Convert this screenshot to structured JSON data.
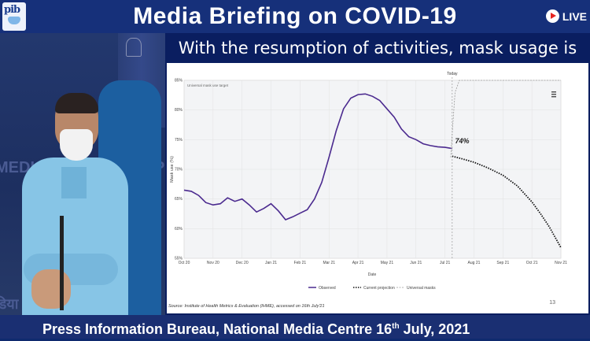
{
  "header": {
    "title": "Media Briefing on COVID-19",
    "live_label": "LIVE",
    "logo_text": "pib"
  },
  "speaker": {
    "background_text_left": "MEDIA",
    "background_text_right": "P",
    "background_text_bottom": "डिया"
  },
  "slide": {
    "title": "With the resumption of activities, mask usage is declining",
    "source": "Source: Institute of Health Metrics & Evaluation (IHME), accessed on 16th July'21",
    "page_number": "13"
  },
  "footer": {
    "text": "Press Information Bureau, National Media Centre  16",
    "sup": "th",
    "text_end": " July, 2021"
  },
  "chart_data": {
    "type": "line",
    "title": "",
    "ylabel": "Mask use (%)",
    "xlabel": "Date",
    "ylim": [
      55,
      85
    ],
    "yticks": [
      "55%",
      "60%",
      "65%",
      "70%",
      "75%",
      "80%",
      "85%"
    ],
    "xticks": [
      "Oct 20",
      "Nov 20",
      "Dec 20",
      "Jan 21",
      "Feb 21",
      "Mar 21",
      "Apr 21",
      "May 21",
      "Jun 21",
      "Jul 21",
      "Aug 21",
      "Sep 21",
      "Oct 21",
      "Nov 21"
    ],
    "today_label": "Today",
    "target_label": "Universal mask use target",
    "annotation": "74%",
    "legend": [
      "Observed",
      "Current projection",
      "Universal masks"
    ],
    "series": [
      {
        "name": "Observed",
        "color": "#4b2a8f",
        "style": "solid",
        "x": [
          0,
          0.25,
          0.5,
          0.75,
          1,
          1.25,
          1.5,
          1.75,
          2,
          2.25,
          2.5,
          2.75,
          3,
          3.25,
          3.5,
          3.75,
          4,
          4.25,
          4.5,
          4.75,
          5,
          5.25,
          5.5,
          5.75,
          6,
          6.25,
          6.5,
          6.75,
          7,
          7.25,
          7.5,
          7.75,
          8,
          8.25,
          8.5,
          8.75,
          9,
          9.25
        ],
        "values": [
          66.5,
          66.3,
          65.6,
          64.4,
          64.0,
          64.2,
          65.2,
          64.6,
          65.0,
          64.0,
          62.8,
          63.4,
          64.2,
          63.0,
          61.5,
          62.0,
          62.6,
          63.2,
          65.0,
          67.8,
          72.0,
          76.5,
          80.2,
          82.0,
          82.6,
          82.7,
          82.3,
          81.6,
          80.2,
          78.8,
          76.8,
          75.5,
          75.0,
          74.3,
          74.0,
          73.8,
          73.7,
          73.5
        ]
      },
      {
        "name": "Current projection",
        "color": "#111111",
        "style": "dotted",
        "x": [
          9.25,
          9.5,
          10,
          10.5,
          11,
          11.5,
          12,
          12.3,
          12.6,
          13
        ],
        "values": [
          72.2,
          71.9,
          71.2,
          70.2,
          69.0,
          67.2,
          64.5,
          62.5,
          60.3,
          56.8
        ]
      },
      {
        "name": "Universal masks",
        "color": "#9a9a9a",
        "style": "dashed",
        "x": [
          9.2,
          9.25,
          9.35,
          9.5,
          13
        ],
        "values": [
          72.0,
          76.0,
          83.0,
          85.0,
          85.0
        ]
      }
    ]
  }
}
